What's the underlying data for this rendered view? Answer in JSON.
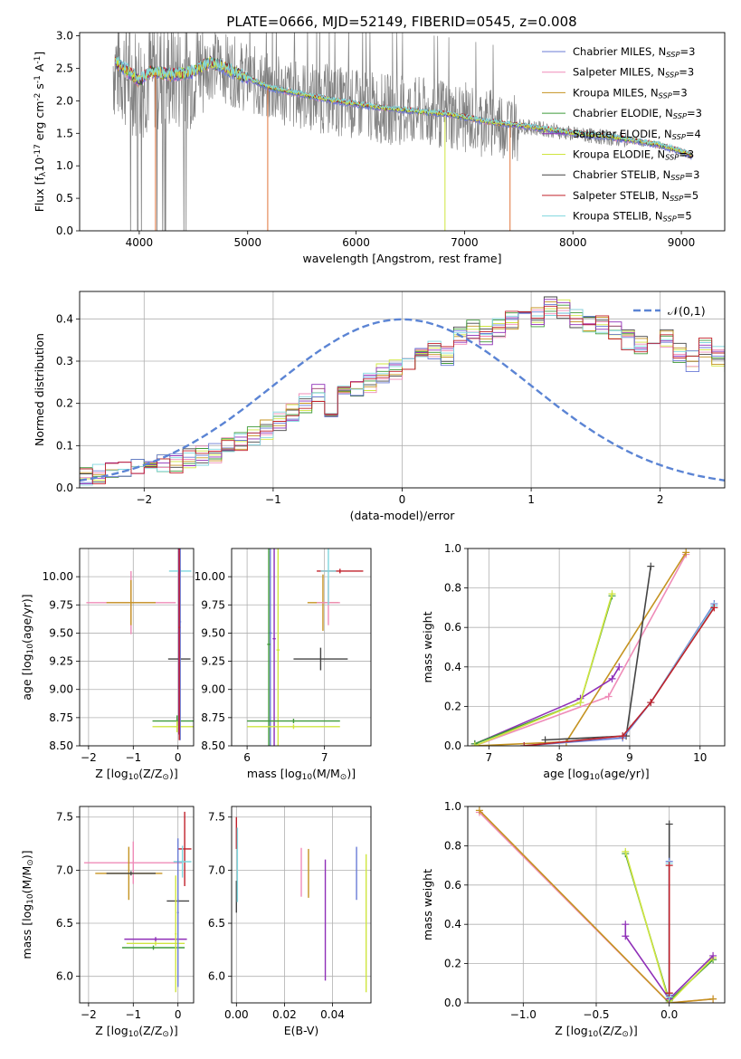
{
  "figure": {
    "title": "PLATE=0666, MJD=52149, FIBERID=0545, z=0.008",
    "models": [
      {
        "name": "Chabrier MILES, N$_{SSP}$=3",
        "label": "Chabrier MILES, N",
        "sub": "SSP",
        "tail": "=3",
        "color": "#6a7bd6"
      },
      {
        "name": "Salpeter MILES, N$_{SSP}$=3",
        "label": "Salpeter MILES, N",
        "sub": "SSP",
        "tail": "=3",
        "color": "#ef8cb8"
      },
      {
        "name": "Kroupa MILES, N$_{SSP}$=3",
        "label": "Kroupa MILES, N",
        "sub": "SSP",
        "tail": "=3",
        "color": "#c59321"
      },
      {
        "name": "Chabrier ELODIE, N$_{SSP}$=3",
        "label": "Chabrier ELODIE, N",
        "sub": "SSP",
        "tail": "=3",
        "color": "#3f9a3a"
      },
      {
        "name": "Salpeter ELODIE, N$_{SSP}$=4",
        "label": "Salpeter ELODIE, N",
        "sub": "SSP",
        "tail": "=4",
        "color": "#8f2fb8"
      },
      {
        "name": "Kroupa ELODIE, N$_{SSP}$=3",
        "label": "Kroupa ELODIE, N",
        "sub": "SSP",
        "tail": "=3",
        "color": "#cfe53f"
      },
      {
        "name": "Chabrier STELIB, N$_{SSP}$=3",
        "label": "Chabrier STELIB, N",
        "sub": "SSP",
        "tail": "=3",
        "color": "#444444"
      },
      {
        "name": "Salpeter STELIB, N$_{SSP}$=5",
        "label": "Salpeter STELIB, N",
        "sub": "SSP",
        "tail": "=5",
        "color": "#c0202a"
      },
      {
        "name": "Kroupa STELIB, N$_{SSP}$=5",
        "label": "Kroupa STELIB, N",
        "sub": "SSP",
        "tail": "=5",
        "color": "#7fd6de"
      }
    ]
  },
  "chart_data": [
    {
      "type": "line",
      "id": "spectrum",
      "title": "PLATE=0666, MJD=52149, FIBERID=0545, z=0.008",
      "xlabel": "wavelength [Angstrom, rest frame]",
      "ylabel": "Flux [f$_\\lambda$10$^{-17}$ erg cm$^{-2}$ s$^{-1}$ A$^{-1}$]",
      "xlim": [
        3450,
        9400
      ],
      "ylim": [
        0,
        3.05
      ],
      "xticks": [
        4000,
        5000,
        6000,
        7000,
        8000,
        9000
      ],
      "yticks": [
        0.0,
        0.5,
        1.0,
        1.5,
        2.0,
        2.5,
        3.0
      ],
      "grid": false,
      "legend": "upper right",
      "data_series": {
        "name": "data",
        "color": "#808080",
        "x": [
          3800,
          4000,
          4300,
          4500,
          4800,
          5000,
          5200,
          5500,
          5800,
          6000,
          6200,
          6500,
          6800,
          7000,
          7200,
          7500,
          7800,
          8000,
          8300,
          8600,
          8800,
          9000,
          9100
        ],
        "y": [
          2.35,
          2.15,
          2.35,
          2.45,
          2.5,
          2.35,
          2.15,
          2.05,
          2.05,
          1.9,
          1.85,
          1.8,
          1.75,
          1.7,
          1.65,
          1.6,
          1.55,
          1.45,
          1.4,
          1.3,
          1.25,
          1.15,
          1.1
        ]
      },
      "model_continuum": {
        "x": [
          3780,
          3900,
          4000,
          4100,
          4300,
          4500,
          4650,
          4800,
          5000,
          5200,
          5500,
          5800,
          6000,
          6200,
          6500,
          6800,
          7000,
          7200,
          7500,
          7800,
          8000,
          8300,
          8600,
          8800,
          9000,
          9100
        ],
        "y": [
          2.6,
          2.45,
          2.3,
          2.45,
          2.4,
          2.45,
          2.6,
          2.5,
          2.35,
          2.2,
          2.1,
          2.0,
          1.95,
          1.9,
          1.85,
          1.8,
          1.75,
          1.68,
          1.62,
          1.55,
          1.5,
          1.45,
          1.38,
          1.32,
          1.22,
          1.15
        ]
      }
    },
    {
      "type": "line",
      "id": "residuals",
      "xlabel": "(data-model)/error",
      "ylabel": "Normed distribution",
      "xlim": [
        -2.5,
        2.5
      ],
      "ylim": [
        0,
        0.465
      ],
      "xticks": [
        -2,
        -1,
        0,
        1,
        2
      ],
      "yticks": [
        0.0,
        0.1,
        0.2,
        0.3,
        0.4
      ],
      "grid": true,
      "legend": "upper right",
      "legend_label": "$\\mathcal{N}(0,1)$",
      "gaussian": {
        "name": "$\\mathcal{N}(0,1)$",
        "color": "#5b84d4",
        "mean": 0,
        "sigma": 1
      },
      "hist_bins": {
        "start": -2.5,
        "width": 0.1,
        "base": [
          0.03,
          0.032,
          0.036,
          0.04,
          0.045,
          0.052,
          0.058,
          0.06,
          0.068,
          0.075,
          0.08,
          0.1,
          0.11,
          0.125,
          0.14,
          0.16,
          0.18,
          0.2,
          0.22,
          0.19,
          0.225,
          0.24,
          0.25,
          0.27,
          0.28,
          0.3,
          0.32,
          0.33,
          0.31,
          0.36,
          0.375,
          0.36,
          0.38,
          0.4,
          0.41,
          0.405,
          0.43,
          0.42,
          0.4,
          0.39,
          0.385,
          0.37,
          0.35,
          0.34,
          0.33,
          0.35,
          0.32,
          0.3,
          0.33,
          0.31,
          0.3,
          0.25,
          0.22,
          0.2,
          0.18,
          0.16,
          0.17,
          0.15,
          0.14,
          0.13,
          0.12,
          0.13,
          0.11,
          0.1,
          0.09,
          0.08,
          0.07,
          0.06,
          0.05,
          0.055,
          0.045,
          0.04,
          0.035,
          0.03,
          0.025,
          0.02,
          0.02,
          0.018,
          0.016,
          0.015
        ]
      }
    },
    {
      "type": "scatter",
      "id": "age_vs_Z",
      "xlabel": "Z [log$_{10}$(Z/Z$_\\odot$)]",
      "ylabel": "age  [log$_{10}$(age/yr)]",
      "xlim": [
        -2.2,
        0.35
      ],
      "ylim": [
        8.5,
        10.25
      ],
      "xticks": [
        -2,
        -1,
        0
      ],
      "yticks": [
        8.5,
        8.75,
        9.0,
        9.25,
        9.5,
        9.75,
        10.0
      ],
      "grid": true,
      "errorbars": [
        {
          "model": 1,
          "x": -1.05,
          "y": 9.77,
          "xerr": 1.0,
          "yerr": 0.28
        },
        {
          "model": 2,
          "x": -1.05,
          "y": 9.77,
          "xerr": 0.55,
          "yerr": 0.2
        },
        {
          "model": 6,
          "x": 0.03,
          "y": 9.27,
          "xerr": 0.25,
          "yerr": 0.1
        },
        {
          "model": 8,
          "x": 0.05,
          "y": 10.05,
          "xerr": 0.25,
          "yerr": 0.02
        },
        {
          "model": 3,
          "x": -0.02,
          "y": 8.72,
          "xerr": 0.55,
          "yerr": 0.05
        },
        {
          "model": 5,
          "x": -0.02,
          "y": 8.67,
          "xerr": 0.55,
          "yerr": 0.05
        },
        {
          "model": 0,
          "x": 0.05,
          "y": 9.6,
          "xerr": 0.02,
          "yerr": 1.05
        },
        {
          "model": 4,
          "x": 0.02,
          "y": 9.5,
          "xerr": 0.02,
          "yerr": 0.9
        },
        {
          "model": 7,
          "x": 0.03,
          "y": 9.55,
          "xerr": 0.02,
          "yerr": 1.0
        }
      ]
    },
    {
      "type": "scatter",
      "id": "age_vs_mass",
      "xlabel": "mass [log$_{10}$(M/M$_\\odot$)]",
      "ylabel": "",
      "xlim": [
        5.8,
        7.6
      ],
      "ylim": [
        8.5,
        10.25
      ],
      "xticks": [
        6,
        7
      ],
      "yticks": [
        8.5,
        8.75,
        9.0,
        9.25,
        9.5,
        9.75,
        10.0
      ],
      "grid": true,
      "errorbars": [
        {
          "model": 0,
          "x": 6.3,
          "y": 9.5,
          "xerr": 0.02,
          "yerr": 1.15
        },
        {
          "model": 3,
          "x": 6.28,
          "y": 9.4,
          "xerr": 0.02,
          "yerr": 1.1
        },
        {
          "model": 4,
          "x": 6.35,
          "y": 9.45,
          "xerr": 0.02,
          "yerr": 1.1
        },
        {
          "model": 5,
          "x": 6.4,
          "y": 9.35,
          "xerr": 0.02,
          "yerr": 1.1
        },
        {
          "model": 6,
          "x": 6.95,
          "y": 9.27,
          "xerr": 0.35,
          "yerr": 0.1
        },
        {
          "model": 2,
          "x": 6.98,
          "y": 9.77,
          "xerr": 0.2,
          "yerr": 0.25
        },
        {
          "model": 1,
          "x": 7.05,
          "y": 9.77,
          "xerr": 0.15,
          "yerr": 0.2
        },
        {
          "model": 7,
          "x": 7.2,
          "y": 10.05,
          "xerr": 0.3,
          "yerr": 0.02
        },
        {
          "model": 8,
          "x": 7.05,
          "y": 10.05,
          "xerr": 0.1,
          "yerr": 0.3
        },
        {
          "model": 3,
          "x": 6.6,
          "y": 8.72,
          "xerr": 0.6,
          "yerr": 0.02
        },
        {
          "model": 5,
          "x": 6.6,
          "y": 8.67,
          "xerr": 0.6,
          "yerr": 0.02
        }
      ]
    },
    {
      "type": "line",
      "id": "mw_vs_age",
      "xlabel": "age  [log$_{10}$(age/yr)]",
      "ylabel": "mass weight",
      "xlim": [
        6.7,
        10.35
      ],
      "ylim": [
        0,
        1.0
      ],
      "xticks": [
        7,
        8,
        9,
        10
      ],
      "yticks": [
        0.0,
        0.2,
        0.4,
        0.6,
        0.8,
        1.0
      ],
      "grid": true,
      "series": [
        {
          "model": 1,
          "x": [
            6.8,
            8.7,
            9.8
          ],
          "y": [
            0.0,
            0.25,
            0.97
          ]
        },
        {
          "model": 2,
          "x": [
            6.8,
            8.1,
            9.8
          ],
          "y": [
            0.0,
            0.02,
            0.98
          ]
        },
        {
          "model": 6,
          "x": [
            7.8,
            8.95,
            9.3
          ],
          "y": [
            0.03,
            0.05,
            0.91
          ]
        },
        {
          "model": 4,
          "x": [
            6.8,
            8.3,
            8.75,
            8.85
          ],
          "y": [
            0.01,
            0.24,
            0.34,
            0.4
          ]
        },
        {
          "model": 3,
          "x": [
            6.8,
            8.3,
            8.75
          ],
          "y": [
            0.01,
            0.22,
            0.76
          ]
        },
        {
          "model": 5,
          "x": [
            6.8,
            8.3,
            8.75
          ],
          "y": [
            0.0,
            0.22,
            0.77
          ]
        },
        {
          "model": 0,
          "x": [
            7.5,
            8.9,
            9.3,
            10.2
          ],
          "y": [
            0.0,
            0.04,
            0.22,
            0.72
          ]
        },
        {
          "model": 8,
          "x": [
            7.5,
            8.9,
            9.3,
            10.2
          ],
          "y": [
            0.0,
            0.05,
            0.22,
            0.71
          ]
        },
        {
          "model": 7,
          "x": [
            7.5,
            8.9,
            9.3,
            10.2
          ],
          "y": [
            0.0,
            0.05,
            0.22,
            0.7
          ]
        }
      ]
    },
    {
      "type": "scatter",
      "id": "mass_vs_Z",
      "xlabel": "Z [log$_{10}$(Z/Z$_\\odot$)]",
      "ylabel": "mass [log$_{10}$(M/M$_\\odot$)]",
      "xlim": [
        -2.2,
        0.35
      ],
      "ylim": [
        5.75,
        7.6
      ],
      "xticks": [
        -2,
        -1,
        0
      ],
      "yticks": [
        6.0,
        6.5,
        7.0,
        7.5
      ],
      "grid": true,
      "errorbars": [
        {
          "model": 1,
          "x": -1.0,
          "y": 7.07,
          "xerr": 1.1,
          "yerr": 0.2
        },
        {
          "model": 2,
          "x": -1.1,
          "y": 6.97,
          "xerr": 0.75,
          "yerr": 0.25
        },
        {
          "model": 6,
          "x": -1.05,
          "y": 6.97,
          "xerr": 0.55,
          "yerr": 0.02
        },
        {
          "model": 4,
          "x": -0.5,
          "y": 6.35,
          "xerr": 0.7,
          "yerr": 0.02
        },
        {
          "model": 3,
          "x": -0.55,
          "y": 6.27,
          "xerr": 0.7,
          "yerr": 0.02
        },
        {
          "model": 5,
          "x": -0.5,
          "y": 6.31,
          "xerr": 0.65,
          "yerr": 0.02
        },
        {
          "model": 6,
          "x": 0.0,
          "y": 6.71,
          "xerr": 0.25,
          "yerr": 0.02
        },
        {
          "model": 7,
          "x": 0.15,
          "y": 7.2,
          "xerr": 0.15,
          "yerr": 0.35
        },
        {
          "model": 8,
          "x": 0.1,
          "y": 7.08,
          "xerr": 0.2,
          "yerr": 0.15
        },
        {
          "model": 0,
          "x": 0.0,
          "y": 6.6,
          "xerr": 0.02,
          "yerr": 0.7
        },
        {
          "model": 5,
          "x": -0.05,
          "y": 6.4,
          "xerr": 0.02,
          "yerr": 0.55
        }
      ]
    },
    {
      "type": "scatter",
      "id": "mass_vs_ebv",
      "xlabel": "E(B-V)",
      "ylabel": "",
      "xlim": [
        -0.002,
        0.056
      ],
      "ylim": [
        5.75,
        7.6
      ],
      "xticks": [
        0.0,
        0.02,
        0.04
      ],
      "yticks": [
        6.0,
        6.5,
        7.0,
        7.5
      ],
      "grid": true,
      "errorbars": [
        {
          "model": 7,
          "x": 0.0,
          "y": 7.35,
          "xerr": 0.0,
          "yerr": 0.15
        },
        {
          "model": 6,
          "x": 0.0,
          "y": 6.75,
          "xerr": 0.0,
          "yerr": 0.15
        },
        {
          "model": 8,
          "x": 0.0004,
          "y": 7.05,
          "xerr": 0.0,
          "yerr": 0.35
        },
        {
          "model": 1,
          "x": 0.027,
          "y": 6.98,
          "xerr": 0.0,
          "yerr": 0.23
        },
        {
          "model": 2,
          "x": 0.03,
          "y": 6.97,
          "xerr": 0.0,
          "yerr": 0.23
        },
        {
          "model": 4,
          "x": 0.037,
          "y": 6.53,
          "xerr": 0.0,
          "yerr": 0.57
        },
        {
          "model": 0,
          "x": 0.05,
          "y": 6.97,
          "xerr": 0.0,
          "yerr": 0.25
        },
        {
          "model": 5,
          "x": 0.054,
          "y": 6.5,
          "xerr": 0.0,
          "yerr": 0.65
        }
      ]
    },
    {
      "type": "line",
      "id": "mw_vs_Z",
      "xlabel": "Z [log$_{10}$(Z/Z$_\\odot$)]",
      "ylabel": "mass weight",
      "xlim": [
        -1.38,
        0.38
      ],
      "ylim": [
        0,
        1.0
      ],
      "xticks": [
        -1.0,
        -0.5,
        0.0
      ],
      "yticks": [
        0.0,
        0.2,
        0.4,
        0.6,
        0.8,
        1.0
      ],
      "grid": true,
      "series": [
        {
          "model": 1,
          "x": [
            -1.3,
            0.0,
            0.3
          ],
          "y": [
            0.97,
            0.0,
            0.02
          ]
        },
        {
          "model": 2,
          "x": [
            -1.3,
            0.0,
            0.3
          ],
          "y": [
            0.98,
            0.0,
            0.02
          ]
        },
        {
          "model": 3,
          "x": [
            -0.3,
            0.0,
            0.3
          ],
          "y": [
            0.76,
            0.01,
            0.22
          ]
        },
        {
          "model": 5,
          "x": [
            -0.3,
            0.0,
            0.3
          ],
          "y": [
            0.77,
            0.0,
            0.23
          ]
        },
        {
          "model": 4,
          "x": [
            -0.3,
            -0.3,
            0.0,
            0.3
          ],
          "y": [
            0.4,
            0.34,
            0.02,
            0.24
          ]
        },
        {
          "model": 6,
          "x": [
            0.0,
            0.0
          ],
          "y": [
            0.05,
            0.91
          ]
        },
        {
          "model": 0,
          "x": [
            0.0,
            0.0
          ],
          "y": [
            0.04,
            0.72
          ]
        },
        {
          "model": 8,
          "x": [
            0.0,
            0.0
          ],
          "y": [
            0.03,
            0.71
          ]
        },
        {
          "model": 7,
          "x": [
            0.0,
            0.0
          ],
          "y": [
            0.05,
            0.7
          ]
        }
      ]
    }
  ]
}
